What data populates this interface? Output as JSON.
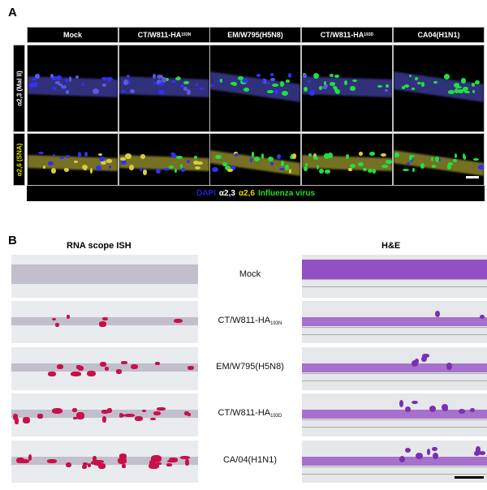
{
  "panel_a": {
    "label": "A",
    "columns": [
      {
        "main": "Mock",
        "sub": ""
      },
      {
        "main": "CT/W811-HA",
        "sub": "193N"
      },
      {
        "main": "EM/W795(H5N8)",
        "sub": ""
      },
      {
        "main": "CT/W811-HA",
        "sub": "193D"
      },
      {
        "main": "CA04(H1N1)",
        "sub": ""
      }
    ],
    "rows": [
      {
        "label": "α2,3 (Mal II)",
        "color": "#ffffff"
      },
      {
        "label": "α2,6 (SNA)",
        "color": "#e8e000"
      }
    ],
    "legend": [
      {
        "text": "DAPI",
        "color": "#2020d0"
      },
      {
        "text": "α2,3",
        "color": "#ffffff"
      },
      {
        "text": "α2,6",
        "color": "#e8d800"
      },
      {
        "text": "Influenza virus",
        "color": "#22dd22"
      }
    ]
  },
  "panel_b": {
    "label": "B",
    "left_title": "RNA scope ISH",
    "right_title": "H&E",
    "rows": [
      {
        "main": "Mock",
        "sub": ""
      },
      {
        "main": "CT/W811-HA",
        "sub": "193N"
      },
      {
        "main": "EM/W795(H5N8)",
        "sub": ""
      },
      {
        "main": "CT/W811-HA",
        "sub": "193D"
      },
      {
        "main": "CA/04(H1N1)",
        "sub": ""
      }
    ],
    "ish_color": "#c8104a",
    "he_color": "#8a3fc0",
    "infection_level": [
      0,
      0.2,
      0.45,
      0.75,
      0.9
    ]
  }
}
